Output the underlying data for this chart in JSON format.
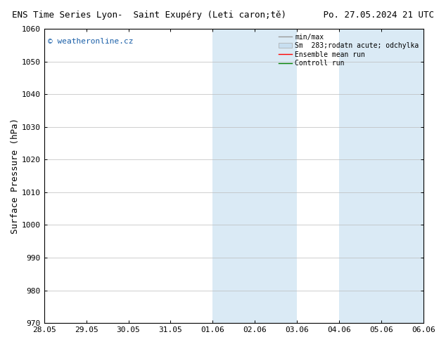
{
  "title_left": "ENS Time Series Lyon-  Saint Exupéry (Leti caron;tě)",
  "title_right": "Po. 27.05.2024 21 UTC",
  "ylabel": "Surface Pressure (hPa)",
  "ylim": [
    970,
    1060
  ],
  "yticks": [
    970,
    980,
    990,
    1000,
    1010,
    1020,
    1030,
    1040,
    1050,
    1060
  ],
  "xlim": [
    0,
    9
  ],
  "xtick_positions": [
    0,
    1,
    2,
    3,
    4,
    5,
    6,
    7,
    8,
    9
  ],
  "xtick_labels": [
    "28.05",
    "29.05",
    "30.05",
    "31.05",
    "01.06",
    "02.06",
    "03.06",
    "04.06",
    "05.06",
    "06.06"
  ],
  "shading_bands": [
    {
      "x_start": 4,
      "x_end": 6,
      "color": "#daeaf5"
    },
    {
      "x_start": 7,
      "x_end": 9,
      "color": "#daeaf5"
    }
  ],
  "watermark": "© weatheronline.cz",
  "watermark_color": "#1a5fa8",
  "legend_entries": [
    {
      "label": "min/max",
      "color": "#999999",
      "lw": 1.0,
      "type": "line"
    },
    {
      "label": "Sm  283;rodatn acute; odchylka",
      "color": "#c8dff0",
      "type": "band"
    },
    {
      "label": "Ensemble mean run",
      "color": "red",
      "lw": 1.0,
      "type": "line"
    },
    {
      "label": "Controll run",
      "color": "green",
      "lw": 1.0,
      "type": "line"
    }
  ],
  "bg_color": "#ffffff",
  "grid_color": "#bbbbbb",
  "border_color": "#000000",
  "title_fontsize": 9,
  "tick_fontsize": 8,
  "ylabel_fontsize": 9,
  "legend_fontsize": 7,
  "watermark_fontsize": 8
}
